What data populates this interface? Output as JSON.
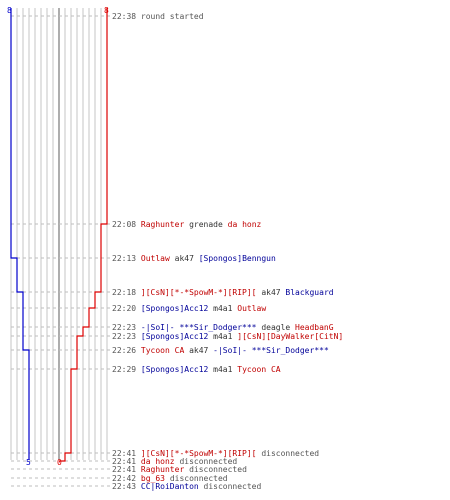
{
  "colors": {
    "red": "#dd0000",
    "blue": "#0000cc",
    "grid": "#b8b8b8",
    "grid_mid": "#777777",
    "dash": "#bdbdbd"
  },
  "score": {
    "blue_start": "8",
    "red_start": "8",
    "blue_end": "5",
    "red_end": "0"
  },
  "events": [
    {
      "time": "22:38",
      "parts": [
        {
          "text": "round started",
          "c": "gray"
        }
      ]
    },
    {
      "time": "22:08",
      "parts": [
        {
          "text": "Raghunter",
          "c": "red"
        },
        {
          "text": " grenade ",
          "c": "k"
        },
        {
          "text": "da honz",
          "c": "red"
        }
      ]
    },
    {
      "time": "22:13",
      "parts": [
        {
          "text": "Outlaw",
          "c": "red"
        },
        {
          "text": " ak47 ",
          "c": "k"
        },
        {
          "text": "[Spongos]Benngun",
          "c": "blue"
        }
      ]
    },
    {
      "time": "22:18",
      "parts": [
        {
          "text": "][CsN][*-*SpowM-*][RIP][",
          "c": "red"
        },
        {
          "text": " ak47 ",
          "c": "k"
        },
        {
          "text": "Blackguard",
          "c": "blue"
        }
      ]
    },
    {
      "time": "22:20",
      "parts": [
        {
          "text": "[Spongos]Acc12",
          "c": "blue"
        },
        {
          "text": " m4a1 ",
          "c": "k"
        },
        {
          "text": "Outlaw",
          "c": "red"
        }
      ]
    },
    {
      "time": "22:23",
      "parts": [
        {
          "text": "-|SoI|- ***Sir_Dodger***",
          "c": "blue"
        },
        {
          "text": " deagle ",
          "c": "k"
        },
        {
          "text": "HeadbanG",
          "c": "red"
        }
      ]
    },
    {
      "time": "22:23",
      "parts": [
        {
          "text": "[Spongos]Acc12",
          "c": "blue"
        },
        {
          "text": " m4a1 ",
          "c": "k"
        },
        {
          "text": "][CsN][DayWalker[CitN]",
          "c": "red"
        }
      ]
    },
    {
      "time": "22:26",
      "parts": [
        {
          "text": "Tycoon CA",
          "c": "red"
        },
        {
          "text": " ak47 ",
          "c": "k"
        },
        {
          "text": "-|SoI|- ***Sir_Dodger***",
          "c": "blue"
        }
      ]
    },
    {
      "time": "22:29",
      "parts": [
        {
          "text": "[Spongos]Acc12",
          "c": "blue"
        },
        {
          "text": " m4a1 ",
          "c": "k"
        },
        {
          "text": "Tycoon CA",
          "c": "red"
        }
      ]
    },
    {
      "time": "22:41",
      "parts": [
        {
          "text": "][CsN][*-*SpowM-*][RIP][",
          "c": "red"
        },
        {
          "text": " disconnected",
          "c": "gray"
        }
      ]
    },
    {
      "time": "22:41",
      "parts": [
        {
          "text": "da honz",
          "c": "red"
        },
        {
          "text": " disconnected",
          "c": "gray"
        }
      ]
    },
    {
      "time": "22:41",
      "parts": [
        {
          "text": "Raghunter",
          "c": "red"
        },
        {
          "text": " disconnected",
          "c": "gray"
        }
      ]
    },
    {
      "time": "22:42",
      "parts": [
        {
          "text": "bg_63",
          "c": "red"
        },
        {
          "text": " disconnected",
          "c": "gray"
        }
      ]
    },
    {
      "time": "22:43",
      "parts": [
        {
          "text": "CC|RoiDanton",
          "c": "blue"
        },
        {
          "text": " disconnected",
          "c": "gray"
        }
      ]
    }
  ]
}
